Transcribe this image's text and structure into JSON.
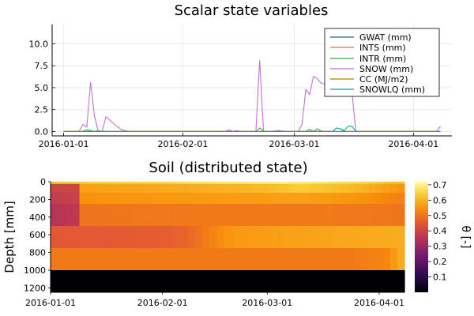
{
  "chart_data": [
    {
      "type": "line",
      "title": "Scalar state variables",
      "xlabel": "",
      "ylabel": "",
      "x_type": "date",
      "xlim": [
        "2015-12-29",
        "2016-04-11"
      ],
      "ylim": [
        -0.5,
        12.2
      ],
      "xticks": [
        "2016-01-01",
        "2016-02-01",
        "2016-03-01",
        "2016-04-01"
      ],
      "yticks": [
        "0.0",
        "2.5",
        "5.0",
        "7.5",
        "10.0"
      ],
      "grid": true,
      "legend_position": "top-right",
      "series": [
        {
          "name": "GWAT (mm)",
          "color": "#0072b2",
          "x": [
            "2016-01-01",
            "2016-04-08"
          ],
          "values": [
            0,
            0
          ]
        },
        {
          "name": "INTS (mm)",
          "color": "#e26f46",
          "x": [
            "2016-01-01",
            "2016-04-08"
          ],
          "values": [
            0,
            0
          ]
        },
        {
          "name": "INTR (mm)",
          "color": "#3ca84a",
          "x": [
            "2016-01-01",
            "2016-01-06",
            "2016-01-07",
            "2016-01-08",
            "2016-01-09",
            "2016-01-10",
            "2016-01-11",
            "2016-01-12",
            "2016-02-20",
            "2016-02-21",
            "2016-02-22",
            "2016-02-23",
            "2016-03-04",
            "2016-03-05",
            "2016-03-06",
            "2016-03-07",
            "2016-03-08",
            "2016-03-09",
            "2016-03-11",
            "2016-03-12",
            "2016-03-13",
            "2016-03-14",
            "2016-03-15",
            "2016-04-08"
          ],
          "values": [
            0,
            0,
            0.2,
            0.1,
            0,
            0.1,
            0,
            0,
            0,
            0.4,
            0.05,
            0,
            0,
            0.25,
            0,
            0.3,
            0.05,
            0,
            0,
            0.4,
            0.3,
            0,
            0,
            0
          ]
        },
        {
          "name": "SNOW (mm)",
          "color": "#c271d2",
          "x": [
            "2016-01-01",
            "2016-01-05",
            "2016-01-06",
            "2016-01-07",
            "2016-01-08",
            "2016-01-09",
            "2016-01-10",
            "2016-01-11",
            "2016-01-12",
            "2016-01-14",
            "2016-01-16",
            "2016-01-18",
            "2016-02-12",
            "2016-02-13",
            "2016-02-14",
            "2016-02-15",
            "2016-02-16",
            "2016-02-20",
            "2016-02-21",
            "2016-02-22",
            "2016-02-23",
            "2016-02-26",
            "2016-02-28",
            "2016-03-02",
            "2016-03-03",
            "2016-03-04",
            "2016-03-05",
            "2016-03-06",
            "2016-03-07",
            "2016-03-08",
            "2016-03-09",
            "2016-03-10",
            "2016-03-11",
            "2016-03-12",
            "2016-03-13",
            "2016-03-14",
            "2016-03-15",
            "2016-03-16",
            "2016-03-17",
            "2016-03-18",
            "2016-03-19",
            "2016-04-07",
            "2016-04-08"
          ],
          "values": [
            0,
            0,
            0.8,
            0.5,
            5.6,
            1.8,
            0,
            0,
            1.7,
            0.9,
            0.2,
            0,
            0,
            0.2,
            0,
            0.1,
            0,
            0,
            8.1,
            0,
            0,
            0.1,
            0,
            0,
            0.8,
            4.8,
            4.2,
            6.3,
            6.0,
            5.5,
            5.4,
            5.2,
            7.0,
            11.0,
            6.5,
            11.5,
            7.5,
            4.5,
            0,
            0,
            0,
            0,
            0.6
          ]
        },
        {
          "name": "CC (MJ/m2)",
          "color": "#ad8000",
          "x": [
            "2016-01-01",
            "2016-04-08"
          ],
          "values": [
            0,
            0
          ]
        },
        {
          "name": "SNOWLQ (mm)",
          "color": "#00a9ad",
          "x": [
            "2016-01-01",
            "2016-03-11",
            "2016-03-12",
            "2016-03-13",
            "2016-03-14",
            "2016-03-15",
            "2016-03-16",
            "2016-03-17",
            "2016-03-18",
            "2016-04-08"
          ],
          "values": [
            0,
            0,
            0.4,
            0.3,
            0.1,
            0.6,
            0.6,
            0,
            0,
            0
          ]
        }
      ]
    },
    {
      "type": "heatmap",
      "title": "Soil (distributed state)",
      "xlabel": "",
      "ylabel": "Depth [mm]",
      "colorbar_label": "θ [-]",
      "colormap": "inferno",
      "x_type": "date",
      "xlim": [
        "2016-01-01",
        "2016-04-08"
      ],
      "ylim": [
        1250,
        0
      ],
      "clim": [
        0,
        0.72
      ],
      "xticks": [
        "2016-01-01",
        "2016-02-01",
        "2016-03-01",
        "2016-04-01"
      ],
      "yticks": [
        "0",
        "200",
        "400",
        "600",
        "800",
        "1000",
        "1200"
      ],
      "cticks": [
        "0.1",
        "0.2",
        "0.3",
        "0.4",
        "0.5",
        "0.6",
        "0.7"
      ],
      "layers": [
        {
          "top": 0,
          "bottom": 25,
          "x": [
            "2016-01-01",
            "2016-02-05",
            "2016-03-05",
            "2016-03-20",
            "2016-04-08"
          ],
          "values": [
            0.63,
            0.66,
            0.7,
            0.67,
            0.62
          ]
        },
        {
          "top": 25,
          "bottom": 125,
          "x": [
            "2016-01-01",
            "2016-01-09",
            "2016-01-10",
            "2016-02-10",
            "2016-03-01",
            "2016-03-10",
            "2016-03-25",
            "2016-04-08"
          ],
          "values": [
            0.4,
            0.4,
            0.57,
            0.59,
            0.61,
            0.64,
            0.61,
            0.55
          ]
        },
        {
          "top": 125,
          "bottom": 250,
          "x": [
            "2016-01-01",
            "2016-01-09",
            "2016-01-10",
            "2016-02-10",
            "2016-03-10",
            "2016-03-28",
            "2016-04-08"
          ],
          "values": [
            0.38,
            0.39,
            0.55,
            0.56,
            0.57,
            0.55,
            0.52
          ]
        },
        {
          "top": 250,
          "bottom": 500,
          "x": [
            "2016-01-01",
            "2016-01-09",
            "2016-01-10",
            "2016-02-15",
            "2016-03-15",
            "2016-04-08"
          ],
          "values": [
            0.35,
            0.37,
            0.5,
            0.51,
            0.51,
            0.5
          ]
        },
        {
          "top": 500,
          "bottom": 750,
          "x": [
            "2016-01-01",
            "2016-02-01",
            "2016-02-07",
            "2016-02-20",
            "2016-03-20",
            "2016-04-08"
          ],
          "values": [
            0.45,
            0.46,
            0.47,
            0.56,
            0.58,
            0.59
          ]
        },
        {
          "top": 750,
          "bottom": 1000,
          "x": [
            "2016-01-01",
            "2016-02-15",
            "2016-03-25",
            "2016-04-03",
            "2016-04-08"
          ],
          "values": [
            0.51,
            0.51,
            0.51,
            0.53,
            0.6
          ]
        },
        {
          "top": 1000,
          "bottom": 1250,
          "x": [
            "2016-01-01",
            "2016-04-08"
          ],
          "values": [
            0.0,
            0.0
          ]
        }
      ]
    }
  ]
}
